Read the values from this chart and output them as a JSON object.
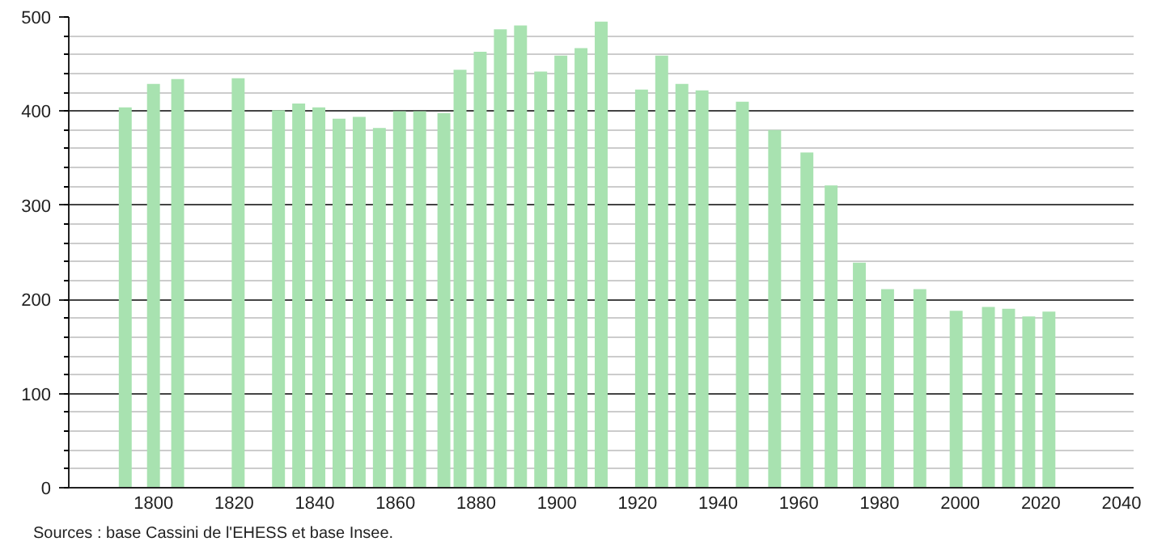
{
  "chart_data": {
    "type": "bar",
    "x": [
      1793,
      1800,
      1806,
      1821,
      1831,
      1836,
      1841,
      1846,
      1851,
      1856,
      1861,
      1866,
      1872,
      1876,
      1881,
      1886,
      1891,
      1896,
      1901,
      1906,
      1911,
      1921,
      1926,
      1931,
      1936,
      1946,
      1954,
      1962,
      1968,
      1975,
      1982,
      1990,
      1999,
      2007,
      2012,
      2017,
      2022
    ],
    "values": [
      404,
      429,
      434,
      435,
      401,
      408,
      404,
      392,
      394,
      382,
      400,
      400,
      398,
      444,
      463,
      487,
      491,
      442,
      459,
      467,
      495,
      423,
      459,
      429,
      422,
      410,
      380,
      356,
      321,
      239,
      211,
      211,
      188,
      192,
      190,
      182,
      187
    ],
    "color": "#a8e2b0",
    "xlim": [
      1779,
      2043
    ],
    "xticks": [
      1800,
      1820,
      1840,
      1860,
      1880,
      1900,
      1920,
      1940,
      1960,
      1980,
      2000,
      2020,
      2040
    ],
    "ylim": [
      0,
      500
    ],
    "yticks": [
      0,
      100,
      200,
      300,
      400,
      500
    ],
    "grid": "y",
    "annotations": [
      "Sources : base Cassini de l'EHESS et base Insee."
    ]
  }
}
